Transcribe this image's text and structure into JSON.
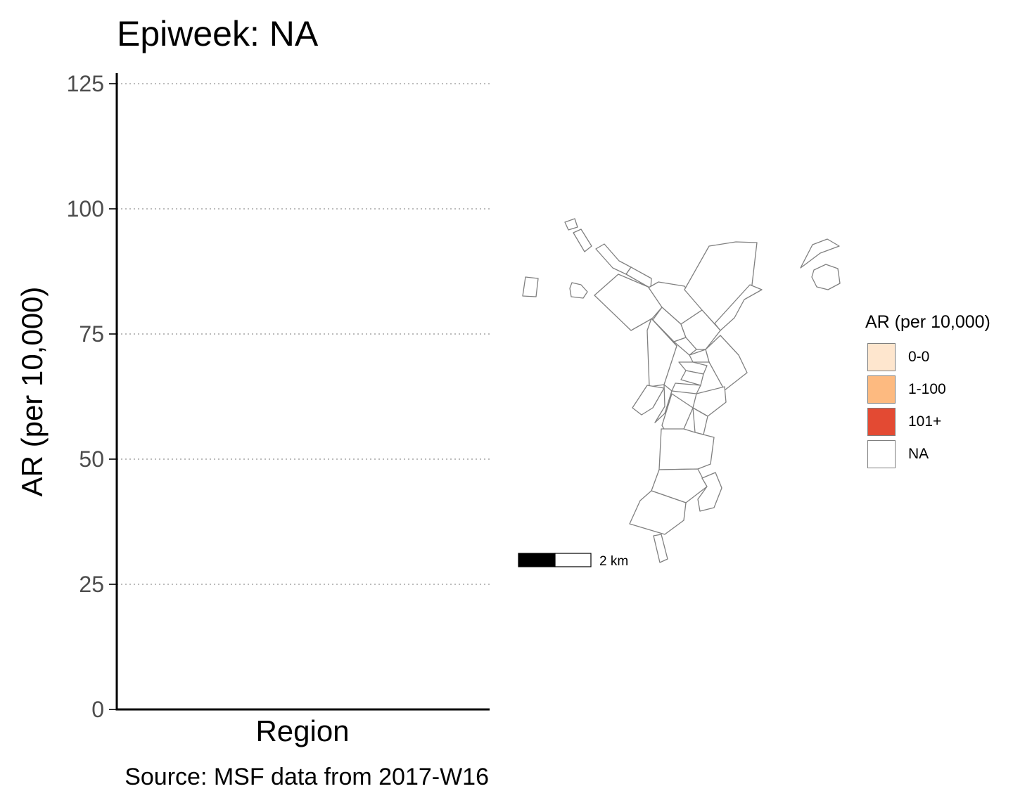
{
  "chart_data": [
    {
      "type": "bar",
      "title": "Epiweek: NA",
      "xlabel": "Region",
      "ylabel": "AR (per 10,000)",
      "caption": "Source: MSF data from 2017-W16",
      "categories": [],
      "values": [],
      "ylim": [
        0,
        125
      ],
      "yticks": [
        "0",
        "25",
        "50",
        "75",
        "100",
        "125"
      ],
      "ytick_values": [
        0,
        25,
        50,
        75,
        100,
        125
      ],
      "grid": "horizontal dotted major lines"
    },
    {
      "type": "map",
      "legend": {
        "title": "AR (per 10,000)",
        "placement": "right",
        "items": [
          {
            "label": "0-0",
            "color": "#fee6ce"
          },
          {
            "label": "1-100",
            "color": "#fdba80"
          },
          {
            "label": "101+",
            "color": "#e34a33"
          },
          {
            "label": "NA",
            "color": "#ffffff"
          }
        ]
      },
      "scalebar_label": "2 km",
      "region_fill": "NA",
      "region_stroke_color": "#808080"
    }
  ]
}
